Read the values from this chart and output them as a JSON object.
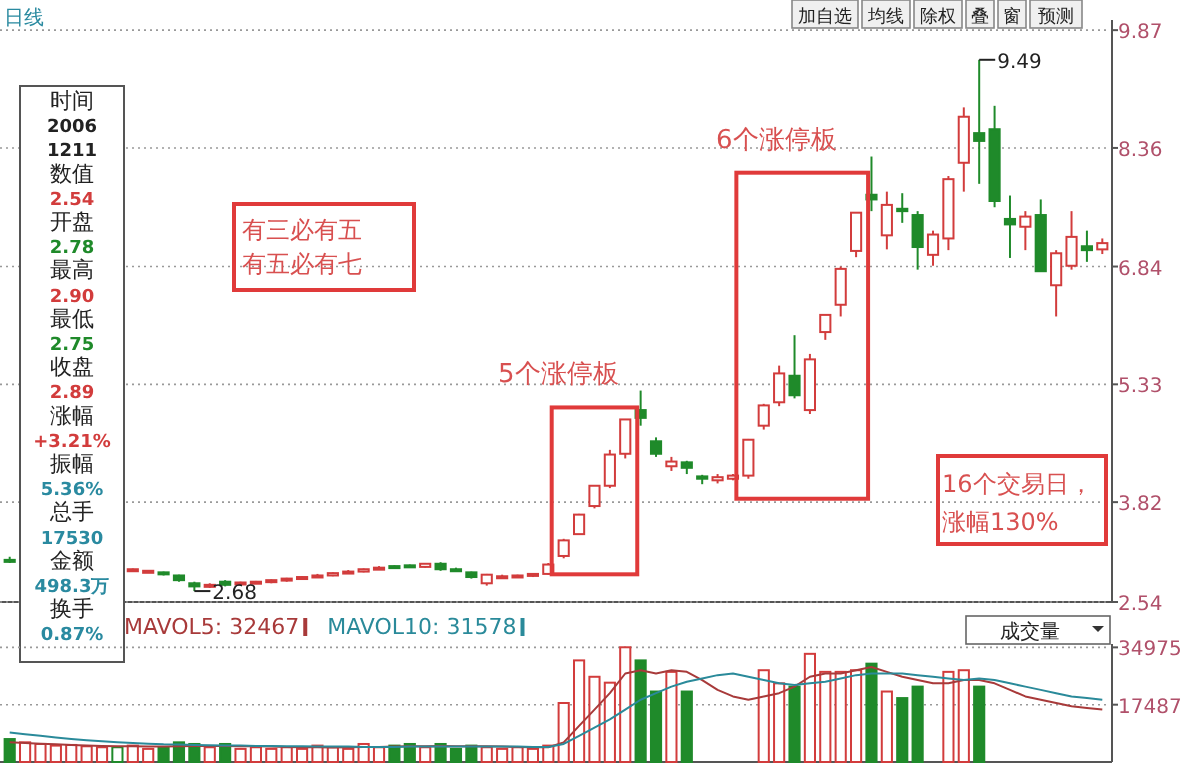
{
  "chart_data": [
    {
      "type": "candlestick",
      "title": "日线",
      "categories": [
        null,
        null,
        null,
        null,
        null,
        null,
        null,
        null,
        null,
        null,
        null,
        null,
        null,
        null,
        null,
        null,
        null,
        null,
        null,
        null,
        null,
        null,
        null,
        null,
        null,
        null,
        null,
        null,
        null,
        null,
        null,
        null,
        null,
        null,
        null,
        null,
        null,
        null,
        null,
        null,
        null,
        null,
        null,
        null,
        null,
        null,
        null,
        null,
        null,
        null,
        null,
        null,
        null,
        null,
        null,
        null,
        null,
        null,
        null,
        null,
        null,
        null,
        null,
        null,
        null,
        null,
        null,
        null,
        null,
        null,
        null,
        null
      ],
      "ohlc": [
        [
          3.08,
          3.12,
          3.04,
          3.06
        ],
        null,
        null,
        null,
        null,
        null,
        null,
        null,
        [
          2.95,
          2.97,
          2.93,
          2.96
        ],
        [
          2.93,
          2.95,
          2.92,
          2.94
        ],
        [
          2.92,
          2.93,
          2.88,
          2.9
        ],
        [
          2.88,
          2.89,
          2.8,
          2.82
        ],
        [
          2.78,
          2.8,
          2.68,
          2.74
        ],
        [
          2.75,
          2.78,
          2.72,
          2.76
        ],
        [
          2.8,
          2.82,
          2.74,
          2.76
        ],
        [
          2.78,
          2.8,
          2.76,
          2.79
        ],
        [
          2.79,
          2.81,
          2.77,
          2.8
        ],
        [
          2.8,
          2.83,
          2.78,
          2.82
        ],
        [
          2.82,
          2.85,
          2.8,
          2.84
        ],
        [
          2.84,
          2.87,
          2.83,
          2.86
        ],
        [
          2.86,
          2.9,
          2.85,
          2.88
        ],
        [
          2.88,
          2.92,
          2.87,
          2.91
        ],
        [
          2.91,
          2.95,
          2.9,
          2.93
        ],
        [
          2.93,
          2.97,
          2.92,
          2.96
        ],
        [
          2.96,
          3.0,
          2.95,
          2.98
        ],
        [
          3.0,
          3.01,
          2.97,
          2.98
        ],
        [
          3.01,
          3.02,
          2.98,
          2.99
        ],
        [
          2.99,
          3.04,
          2.98,
          3.03
        ],
        [
          3.03,
          3.05,
          2.94,
          2.96
        ],
        [
          2.96,
          2.98,
          2.93,
          2.95
        ],
        [
          2.92,
          2.93,
          2.84,
          2.86
        ],
        [
          2.78,
          2.9,
          2.75,
          2.89
        ],
        [
          2.86,
          2.89,
          2.84,
          2.87
        ],
        [
          2.86,
          2.89,
          2.85,
          2.88
        ],
        [
          2.88,
          2.91,
          2.86,
          2.9
        ],
        [
          2.9,
          3.04,
          2.89,
          3.02
        ],
        [
          3.13,
          3.35,
          3.1,
          3.33
        ],
        [
          3.41,
          3.67,
          3.4,
          3.66
        ],
        [
          3.77,
          4.03,
          3.74,
          4.03
        ],
        [
          4.03,
          4.49,
          4.0,
          4.43
        ],
        [
          4.44,
          4.88,
          4.38,
          4.88
        ],
        [
          5.0,
          5.25,
          4.8,
          4.9
        ],
        [
          4.6,
          4.65,
          4.4,
          4.44
        ],
        [
          4.28,
          4.4,
          4.22,
          4.34
        ],
        [
          4.33,
          4.35,
          4.18,
          4.26
        ],
        [
          4.15,
          4.17,
          4.05,
          4.12
        ],
        [
          4.1,
          4.18,
          4.06,
          4.14
        ],
        [
          4.12,
          4.18,
          4.1,
          4.16
        ],
        [
          4.16,
          4.63,
          4.12,
          4.62
        ],
        [
          4.8,
          5.08,
          4.75,
          5.06
        ],
        [
          5.1,
          5.57,
          5.05,
          5.47
        ],
        [
          5.44,
          5.96,
          5.15,
          5.19
        ],
        [
          5.0,
          5.72,
          4.95,
          5.65
        ],
        [
          6.0,
          6.22,
          5.9,
          6.22
        ],
        [
          6.35,
          6.84,
          6.2,
          6.81
        ],
        [
          7.04,
          7.53,
          6.96,
          7.53
        ],
        [
          7.76,
          8.25,
          7.55,
          7.7
        ],
        [
          7.24,
          7.8,
          7.06,
          7.63
        ],
        [
          7.58,
          7.78,
          7.4,
          7.55
        ],
        [
          7.5,
          7.55,
          6.8,
          7.09
        ],
        [
          6.99,
          7.3,
          6.85,
          7.25
        ],
        [
          7.2,
          8.0,
          7.05,
          7.96
        ],
        [
          8.17,
          8.88,
          7.8,
          8.76
        ],
        [
          8.55,
          9.49,
          7.9,
          8.45
        ],
        [
          8.6,
          8.9,
          7.6,
          7.68
        ],
        [
          7.45,
          7.75,
          6.95,
          7.38
        ],
        [
          7.35,
          7.55,
          7.05,
          7.48
        ],
        [
          7.5,
          7.7,
          6.78,
          6.78
        ],
        [
          6.6,
          7.05,
          6.2,
          7.01
        ],
        [
          6.85,
          7.55,
          6.8,
          7.22
        ],
        [
          7.1,
          7.3,
          6.9,
          7.05
        ],
        [
          7.06,
          7.2,
          7.0,
          7.14
        ]
      ],
      "ylim": [
        2.54,
        10.0
      ],
      "yticks": [
        2.54,
        3.82,
        5.33,
        6.84,
        8.36,
        9.87
      ],
      "grid": "y",
      "annotations": [
        "9.49",
        "2.68",
        "有三必有五有五必有七",
        "5个涨停板",
        "6个涨停板",
        "16个交易日，涨幅130%",
        "时间",
        "2006",
        "1211",
        "数值",
        "2.54",
        "开盘",
        "2.78",
        "最高",
        "2.90",
        "最低",
        "2.75",
        "收盘",
        "2.89",
        "涨幅",
        "+3.21%",
        "振幅",
        "5.36%",
        "总手",
        "17530",
        "金额",
        "498.3万",
        "换手",
        "0.87%",
        "加自选",
        "均线",
        "除权",
        "叠",
        "窗",
        "预测"
      ]
    },
    {
      "type": "bar",
      "categories": [
        null,
        null,
        null,
        null,
        null,
        null,
        null,
        null,
        null,
        null,
        null,
        null,
        null,
        null,
        null,
        null,
        null,
        null,
        null,
        null,
        null,
        null,
        null,
        null,
        null,
        null,
        null,
        null,
        null,
        null,
        null,
        null,
        null,
        null,
        null,
        null,
        null,
        null,
        null,
        null,
        null,
        null,
        null,
        null,
        null,
        null,
        null,
        null,
        null,
        null,
        null,
        null,
        null,
        null,
        null,
        null,
        null,
        null,
        null,
        null,
        null,
        null,
        null,
        null,
        null,
        null,
        null,
        null,
        null,
        null,
        null,
        null
      ],
      "series": [
        {
          "type": "bar",
          "colors": [
            "#1f8a2a",
            "#d23c3c",
            "#d23c3c",
            "#d23c3c",
            "#d23c3c",
            "#d23c3c",
            "#d23c3c",
            "#1f8a2a",
            "#d23c3c",
            "#d23c3c",
            "#1f8a2a",
            "#1f8a2a",
            "#1f8a2a",
            "#d23c3c",
            "#1f8a2a",
            "#d23c3c",
            "#d23c3c",
            "#d23c3c",
            "#d23c3c",
            "#d23c3c",
            "#d23c3c",
            "#d23c3c",
            "#d23c3c",
            "#d23c3c",
            "#d23c3c",
            "#1f8a2a",
            "#1f8a2a",
            "#d23c3c",
            "#1f8a2a",
            "#1f8a2a",
            "#1f8a2a",
            "#d23c3c",
            "#d23c3c",
            "#d23c3c",
            "#d23c3c",
            "#d23c3c",
            "#d23c3c",
            "#d23c3c",
            "#d23c3c",
            "#d23c3c",
            "#d23c3c",
            "#1f8a2a",
            "#1f8a2a",
            "#d23c3c",
            "#1f8a2a",
            null,
            null,
            null,
            null,
            "#d23c3c",
            "#d23c3c",
            "#1f8a2a",
            "#d23c3c",
            "#d23c3c",
            "#d23c3c",
            "#d23c3c",
            "#1f8a2a",
            "#d23c3c",
            "#1f8a2a",
            "#1f8a2a",
            null,
            "#d23c3c",
            "#d23c3c",
            "#1f8a2a",
            null,
            null,
            null,
            null,
            null,
            null,
            null,
            null
          ],
          "values": [
            7000,
            6000,
            5500,
            5000,
            5200,
            4800,
            4500,
            4500,
            5000,
            4000,
            4500,
            6000,
            5500,
            4500,
            5500,
            4000,
            4500,
            4000,
            4500,
            4000,
            5000,
            4500,
            4000,
            5500,
            4500,
            5000,
            5500,
            4500,
            5500,
            4000,
            5000,
            4500,
            4000,
            4500,
            4000,
            5000,
            18000,
            31000,
            26000,
            24200,
            35000,
            31000,
            21500,
            27500,
            21500,
            null,
            null,
            null,
            null,
            28000,
            24000,
            23000,
            33000,
            27500,
            27500,
            28000,
            30000,
            21500,
            19500,
            23000,
            null,
            27500,
            28000,
            23000,
            null,
            null,
            null,
            null,
            null,
            null,
            null,
            null
          ]
        },
        {
          "type": "line",
          "name": "MAVOL5: 32467",
          "color": "#a83a3a",
          "values": [
            6000,
            5800,
            5600,
            5400,
            5200,
            5000,
            4900,
            4800,
            4800,
            4700,
            4700,
            4800,
            4900,
            4900,
            4900,
            4800,
            4800,
            4700,
            4600,
            4500,
            4500,
            4400,
            4500,
            4600,
            4600,
            4700,
            4800,
            4800,
            4900,
            4800,
            4800,
            4800,
            4700,
            4600,
            4500,
            4500,
            6000,
            11000,
            16000,
            21000,
            27000,
            28000,
            27000,
            28000,
            27500,
            25000,
            22000,
            20000,
            19000,
            20000,
            21000,
            23000,
            26000,
            27000,
            27000,
            28000,
            29000,
            27500,
            26000,
            25000,
            24000,
            24000,
            25000,
            25000,
            24000,
            22000,
            20000,
            19000,
            18000,
            17000,
            16500,
            16000
          ]
        },
        {
          "type": "line",
          "name": "MAVOL10: 31578",
          "color": "#2a8a9a",
          "values": [
            9000,
            8500,
            8000,
            7500,
            7000,
            6600,
            6300,
            6000,
            5800,
            5600,
            5400,
            5300,
            5200,
            5100,
            5000,
            5000,
            4900,
            4900,
            4800,
            4800,
            4700,
            4700,
            4700,
            4600,
            4600,
            4600,
            4700,
            4700,
            4700,
            4700,
            4700,
            4700,
            4700,
            4700,
            4600,
            4600,
            5500,
            8000,
            10500,
            13000,
            16000,
            19000,
            21000,
            23000,
            24500,
            25500,
            26500,
            27000,
            26000,
            25000,
            24000,
            23500,
            24000,
            24500,
            25500,
            26500,
            27000,
            27000,
            27000,
            26500,
            26000,
            25500,
            25000,
            25500,
            25000,
            24000,
            23000,
            22000,
            21000,
            20000,
            19500,
            19000
          ]
        }
      ],
      "ylim": [
        0,
        36000
      ],
      "yticks": [
        34975,
        17487
      ],
      "grid": "y",
      "legend": "top left",
      "annotations": [
        "成交量"
      ]
    }
  ]
}
